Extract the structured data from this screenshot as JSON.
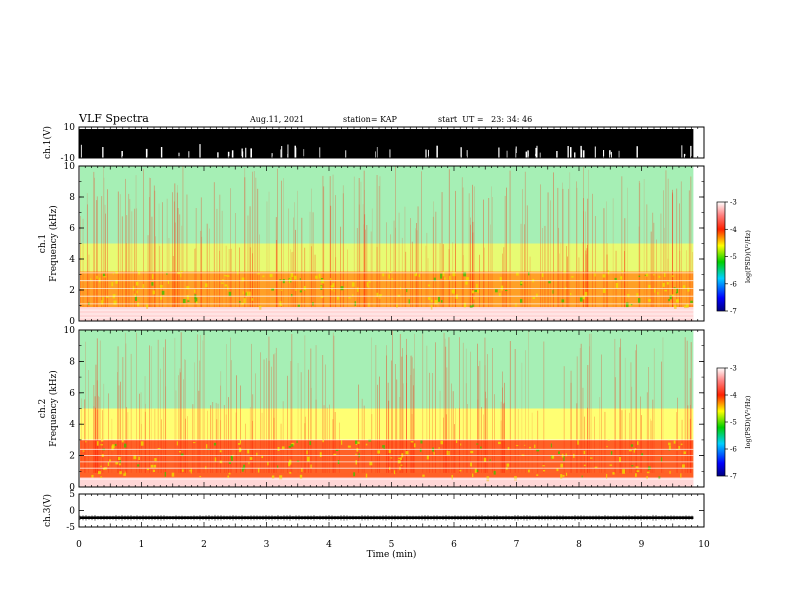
{
  "header": {
    "title": "VLF Spectra",
    "date": "Aug.11, 2021",
    "station": "station= KAP",
    "start_ut": "start  UT =   23: 34: 46"
  },
  "chart_data": [
    {
      "type": "line",
      "panel": "ch1-waveform",
      "ylabel": "ch.1(V)",
      "ylim": [
        -10,
        10
      ],
      "ytick_labels": [
        "10",
        "-10"
      ],
      "xlim": [
        0,
        10
      ],
      "description_values": {
        "signal_envelope_min": -10,
        "signal_envelope_max": 10,
        "typical_min": -5,
        "typical_max": 10
      }
    },
    {
      "type": "heatmap",
      "panel": "ch1-spectrogram",
      "ylabel": "ch.1\nFrequency (kHz)",
      "ylim": [
        0,
        10
      ],
      "ytick_labels": [
        "0",
        "2",
        "4",
        "6",
        "8",
        "10"
      ],
      "xlim": [
        0,
        10
      ],
      "colorbar": {
        "label": "log(PSD)(V²/Hz)",
        "range": [
          -7,
          -3
        ],
        "tick_labels": [
          "-3",
          "-4",
          "-5",
          "-6",
          "-7"
        ]
      },
      "bands_khz": [
        {
          "low": 0.9,
          "high": 3.2,
          "level": -4.3
        },
        {
          "low": 3.2,
          "high": 5.0,
          "level": -4.7
        },
        {
          "low": 5.0,
          "high": 10.0,
          "level": -5.3
        }
      ],
      "lines_khz": [
        0.2,
        0.45,
        0.7,
        1.1,
        1.6,
        2.1,
        2.6,
        3.1
      ]
    },
    {
      "type": "heatmap",
      "panel": "ch2-spectrogram",
      "ylabel": "ch.2\nFrequency (kHz)",
      "ylim": [
        0,
        10
      ],
      "ytick_labels": [
        "0",
        "2",
        "4",
        "6",
        "8",
        "10"
      ],
      "xlim": [
        0,
        10
      ],
      "colorbar": {
        "label": "log(PSD)(V²/Hz)",
        "range": [
          -7,
          -3
        ],
        "tick_labels": [
          "-3",
          "-4",
          "-5",
          "-6",
          "-7"
        ]
      },
      "bands_khz": [
        {
          "low": 0.6,
          "high": 3.0,
          "level": -4.1
        },
        {
          "low": 3.0,
          "high": 5.0,
          "level": -4.6
        },
        {
          "low": 5.0,
          "high": 10.0,
          "level": -5.3
        }
      ],
      "lines_khz": [
        0.5,
        1.2,
        1.6,
        2.0,
        2.4,
        3.0
      ]
    },
    {
      "type": "line",
      "panel": "ch3-waveform",
      "ylabel": "ch.3(V)",
      "ylim": [
        -5,
        5
      ],
      "ytick_labels": [
        "5",
        "0",
        "-5"
      ],
      "xlim": [
        0,
        10
      ],
      "xlabel": "Time (min)",
      "xtick_labels": [
        "0",
        "1",
        "2",
        "3",
        "4",
        "5",
        "6",
        "7",
        "8",
        "9",
        "10"
      ],
      "description_values": {
        "signal_level": -2.2,
        "signal_halfwidth": 0.4
      }
    }
  ],
  "colors": {
    "signal": "#000000",
    "frame": "#000000"
  }
}
